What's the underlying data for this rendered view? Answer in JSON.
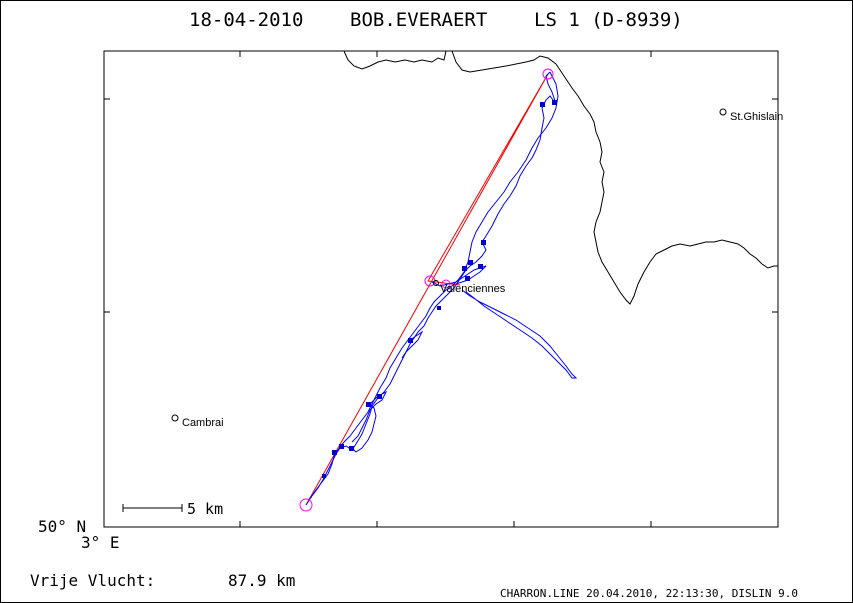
{
  "header": {
    "date": "18-04-2010",
    "pilot": "BOB.EVERAERT",
    "glider": "LS 1 (D-8939)"
  },
  "places": [
    {
      "name": "St.Ghislain"
    },
    {
      "name": "Valenciennes"
    },
    {
      "name": "Cambrai"
    }
  ],
  "axes": {
    "lat_label": "50° N",
    "lon_label": "3° E"
  },
  "scale_bar": {
    "label": "5 km"
  },
  "flight": {
    "distance_label": "Vrije Vlucht:",
    "distance_value": "87.9 km"
  },
  "footer": {
    "credit": "CHARRON.LINE 20.04.2010, 22:13:30, DISLIN 9.0"
  },
  "colors": {
    "track": "#0000ff",
    "task_line": "#ff0000",
    "turnpoint": "#ff00ff",
    "border": "#000000"
  }
}
